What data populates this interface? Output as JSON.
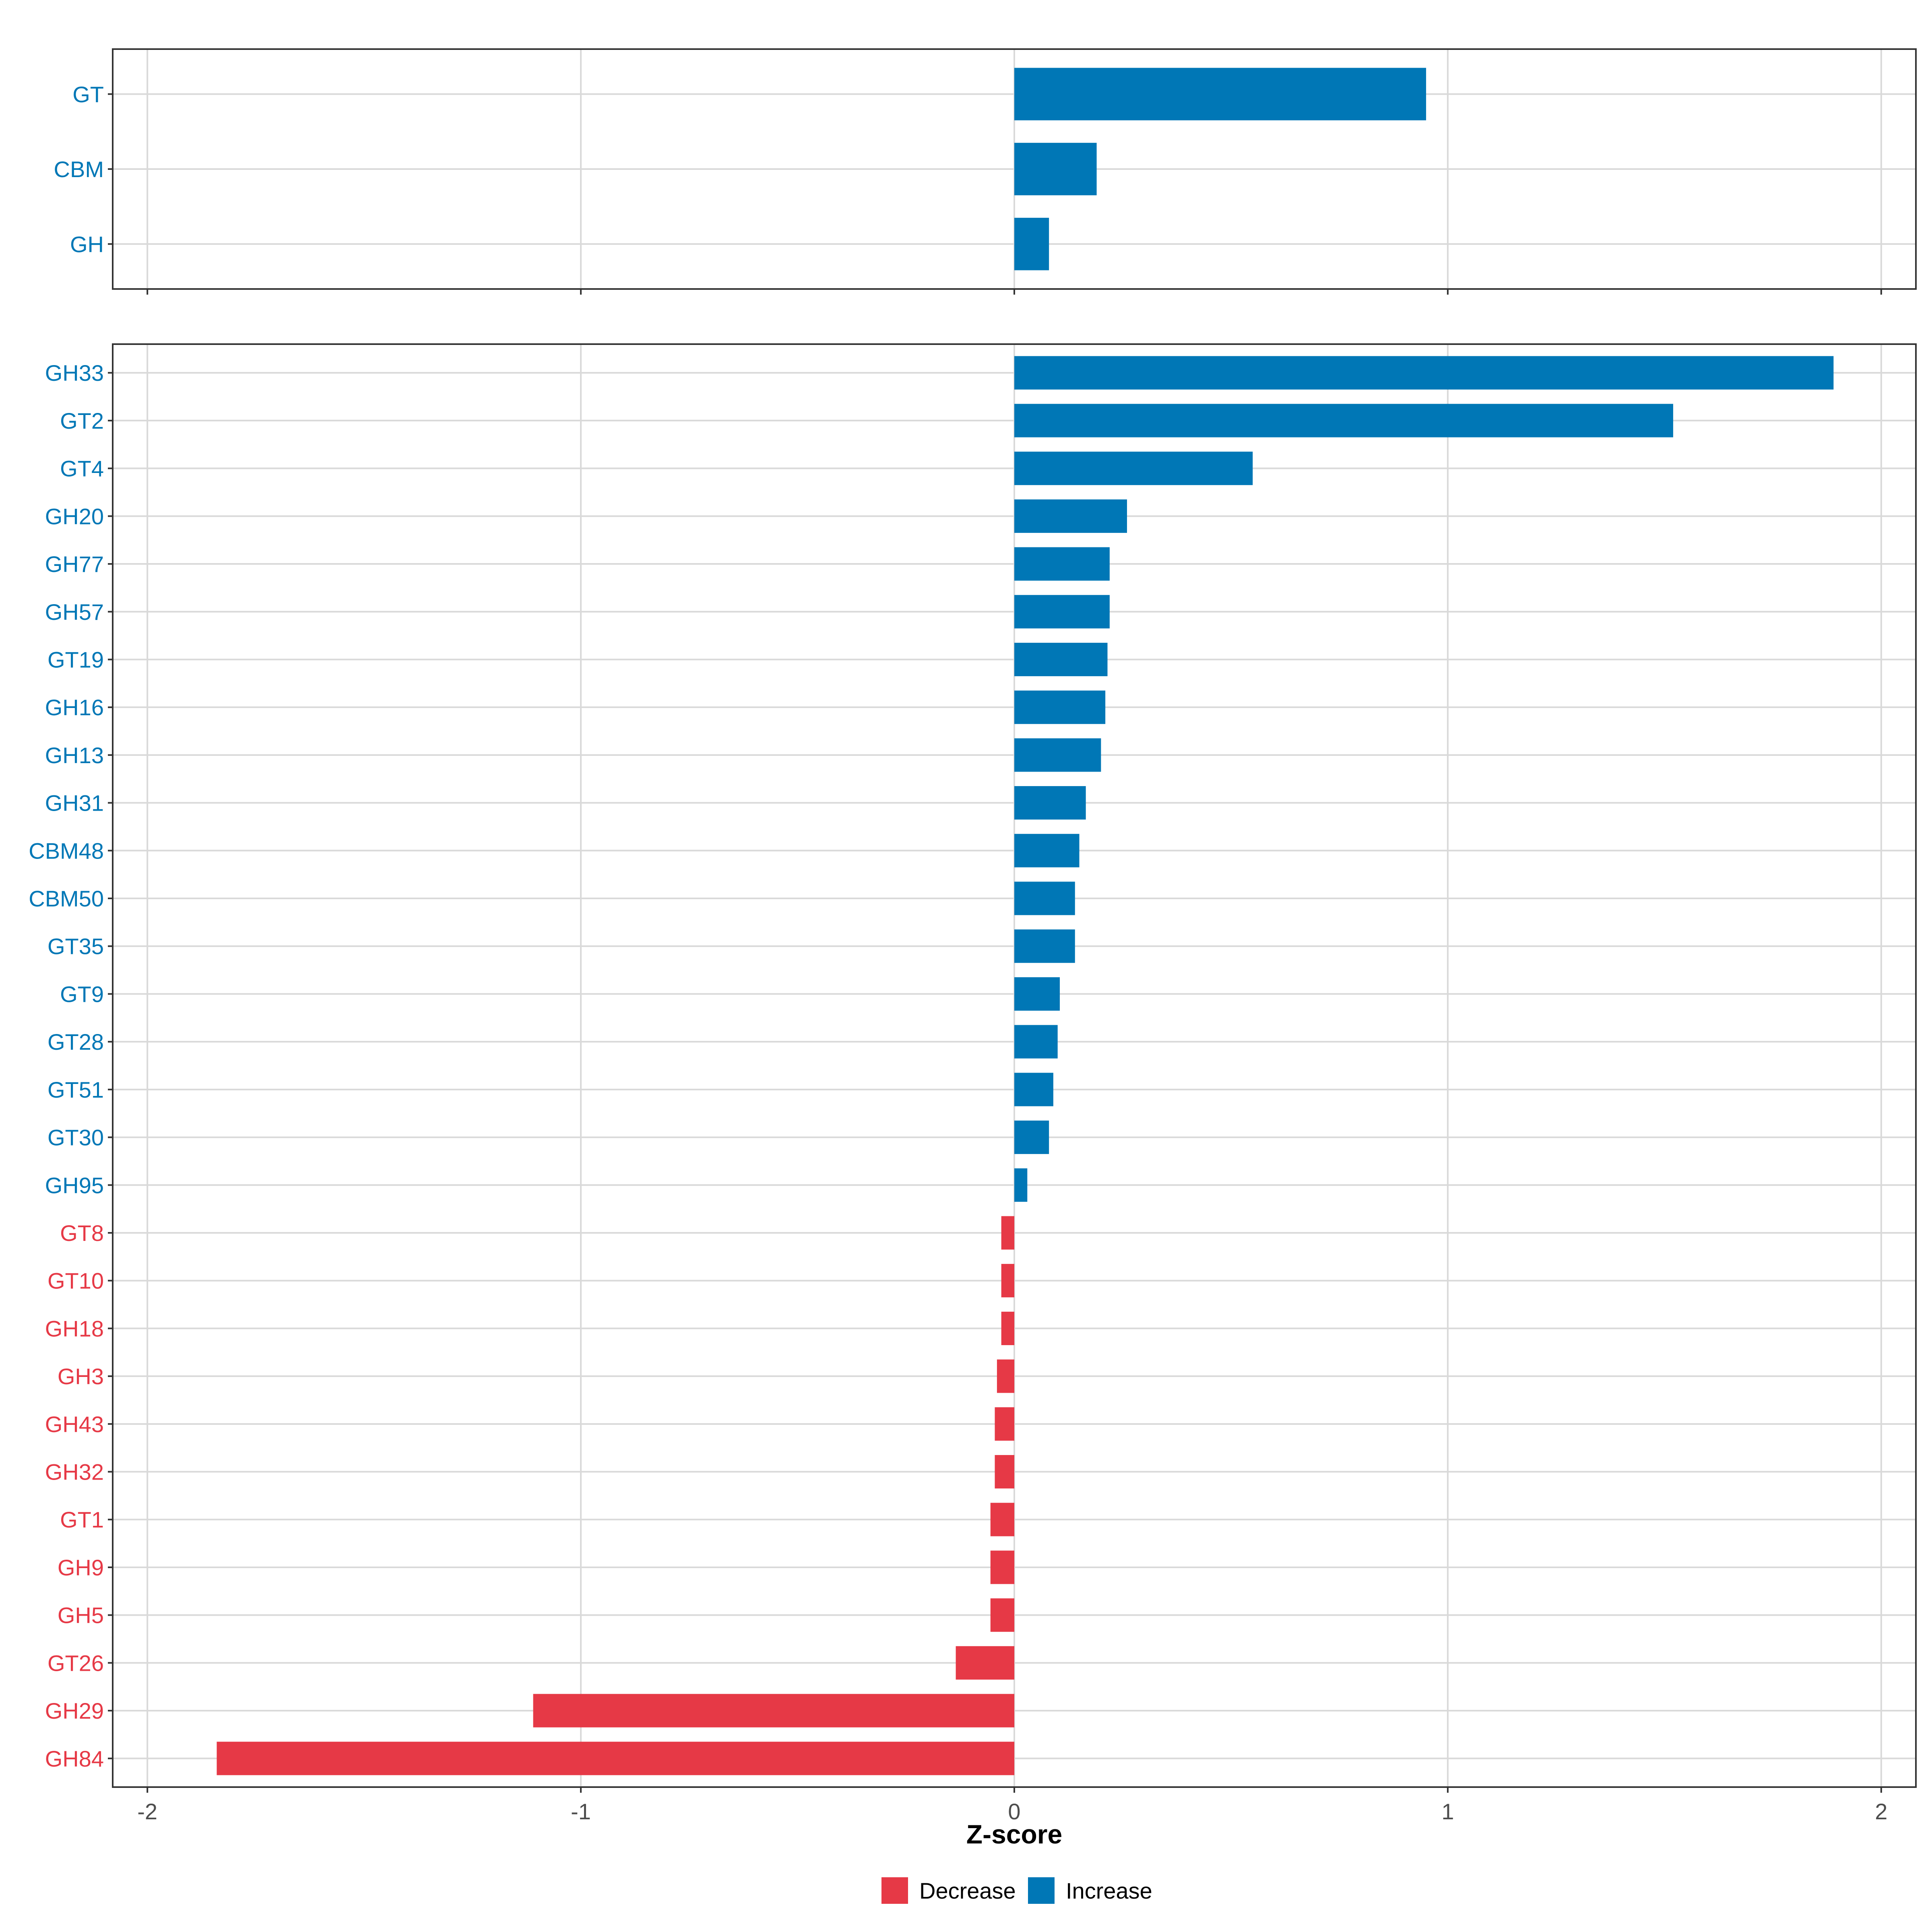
{
  "chart_data": [
    {
      "type": "bar",
      "orientation": "horizontal",
      "panel": "top",
      "categories": [
        "GT",
        "CBM",
        "GH"
      ],
      "values": [
        0.95,
        0.19,
        0.08
      ],
      "xlim": [
        -2.08,
        2.08
      ],
      "grid": true
    },
    {
      "type": "bar",
      "orientation": "horizontal",
      "panel": "bottom",
      "categories": [
        "GH33",
        "GT2",
        "GT4",
        "GH20",
        "GH77",
        "GH57",
        "GT19",
        "GH16",
        "GH13",
        "GH31",
        "CBM48",
        "CBM50",
        "GT35",
        "GT9",
        "GT28",
        "GT51",
        "GT30",
        "GH95",
        "GT8",
        "GT10",
        "GH18",
        "GH3",
        "GH43",
        "GH32",
        "GT1",
        "GH9",
        "GH5",
        "GT26",
        "GH29",
        "GH84"
      ],
      "values": [
        1.89,
        1.52,
        0.55,
        0.26,
        0.22,
        0.22,
        0.215,
        0.21,
        0.2,
        0.165,
        0.15,
        0.14,
        0.14,
        0.105,
        0.1,
        0.09,
        0.08,
        0.03,
        -0.03,
        -0.03,
        -0.03,
        -0.04,
        -0.045,
        -0.045,
        -0.055,
        -0.055,
        -0.055,
        -0.135,
        -1.11,
        -1.84
      ],
      "xlim": [
        -2.08,
        2.08
      ],
      "grid": true
    }
  ],
  "axis": {
    "xlabel": "Z-score",
    "xticks": [
      -2,
      -1,
      0,
      1,
      2
    ],
    "xtick_labels": [
      "-2",
      "-1",
      "0",
      "1",
      "2"
    ]
  },
  "legend": {
    "position": "bottom",
    "items": [
      {
        "label": "Decrease",
        "color": "#E63946"
      },
      {
        "label": "Increase",
        "color": "#0077B6"
      }
    ]
  },
  "colors": {
    "increase": "#0077B6",
    "decrease": "#E63946",
    "grid": "#d9d9d9",
    "panel_border": "#333333"
  }
}
